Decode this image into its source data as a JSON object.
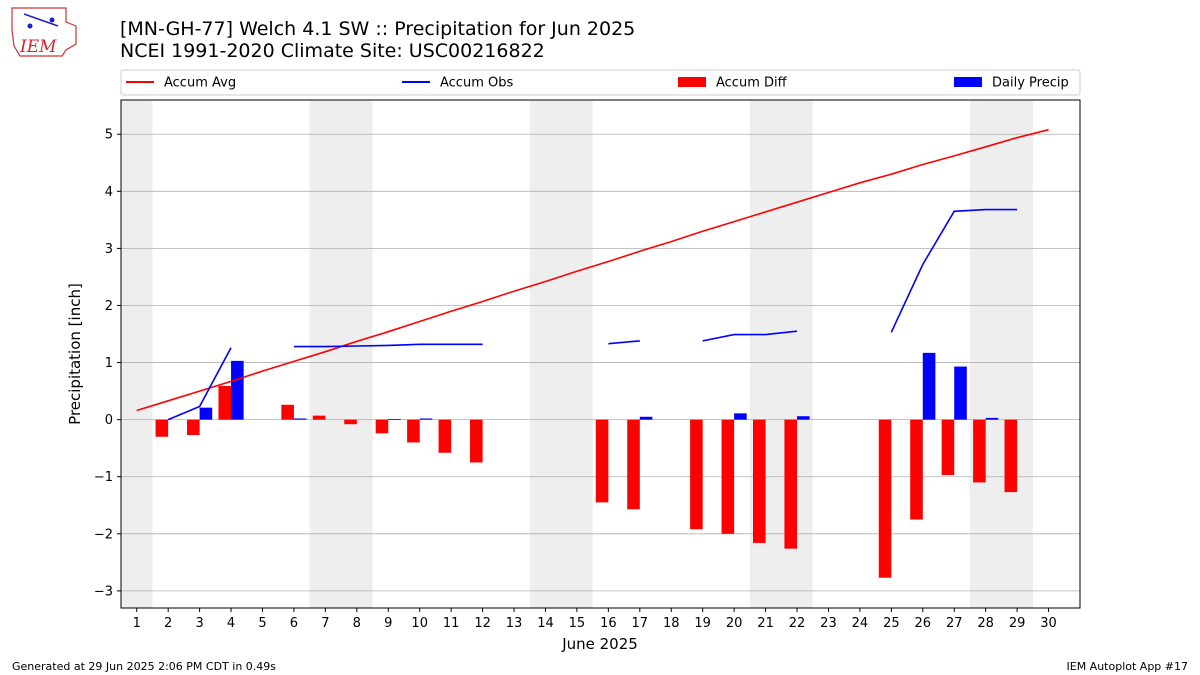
{
  "header": {
    "title_line1": "[MN-GH-77] Welch 4.1 SW :: Precipitation for Jun 2025",
    "title_line2": "NCEI 1991-2020 Climate Site: USC00216822"
  },
  "logo": {
    "text": "IEM",
    "primary_color": "#d62728",
    "secondary_color": "#1f1fcc"
  },
  "footer": {
    "generated": "Generated at 29 Jun 2025 2:06 PM CDT in 0.49s",
    "app": "IEM Autoplot App #17"
  },
  "chart_data": {
    "type": "bar",
    "xlabel": "June 2025",
    "ylabel": "Precipitation [inch]",
    "xlim": [
      0.5,
      31
    ],
    "ylim": [
      -3.3,
      5.6
    ],
    "x_ticks": [
      1,
      2,
      3,
      4,
      5,
      6,
      7,
      8,
      9,
      10,
      11,
      12,
      13,
      14,
      15,
      16,
      17,
      18,
      19,
      20,
      21,
      22,
      23,
      24,
      25,
      26,
      27,
      28,
      29,
      30
    ],
    "y_ticks": [
      -3,
      -2,
      -1,
      0,
      1,
      2,
      3,
      4,
      5
    ],
    "grid": true,
    "legend_placement": "top (above plot)",
    "weekend_shading": [
      [
        0.5,
        1.5
      ],
      [
        6.5,
        8.5
      ],
      [
        13.5,
        15.5
      ],
      [
        20.5,
        22.5
      ],
      [
        27.5,
        29.5
      ]
    ],
    "weekend_color": "#eeeeee",
    "legend": [
      {
        "label": "Accum Avg",
        "kind": "line",
        "color": "#ff0000"
      },
      {
        "label": "Accum Obs",
        "kind": "line",
        "color": "#0000ff"
      },
      {
        "label": "Accum Diff",
        "kind": "bar",
        "color": "#ff0000"
      },
      {
        "label": "Daily Precip",
        "kind": "bar",
        "color": "#0000ff"
      }
    ],
    "series": [
      {
        "name": "Accum Avg",
        "kind": "line",
        "color": "#ff0000",
        "x": [
          1,
          2,
          3,
          4,
          5,
          6,
          7,
          8,
          9,
          10,
          11,
          12,
          13,
          14,
          15,
          16,
          17,
          18,
          19,
          20,
          21,
          22,
          23,
          24,
          25,
          26,
          27,
          28,
          29,
          30
        ],
        "values": [
          0.16,
          0.33,
          0.5,
          0.67,
          0.85,
          1.02,
          1.19,
          1.37,
          1.54,
          1.72,
          1.9,
          2.07,
          2.25,
          2.42,
          2.6,
          2.77,
          2.95,
          3.12,
          3.3,
          3.47,
          3.64,
          3.81,
          3.98,
          4.15,
          4.3,
          4.47,
          4.62,
          4.78,
          4.94,
          5.08
        ]
      },
      {
        "name": "Accum Obs",
        "kind": "line",
        "color": "#0000ff",
        "segments": [
          {
            "x": [
              2,
              3,
              4
            ],
            "values": [
              0.0,
              0.23,
              1.26
            ]
          },
          {
            "x": [
              6,
              7,
              8,
              9,
              10,
              11,
              12
            ],
            "values": [
              1.28,
              1.28,
              1.29,
              1.3,
              1.32,
              1.32,
              1.32
            ]
          },
          {
            "x": [
              16,
              17
            ],
            "values": [
              1.33,
              1.38
            ]
          },
          {
            "x": [
              19,
              20,
              21,
              22
            ],
            "values": [
              1.38,
              1.49,
              1.49,
              1.55
            ]
          },
          {
            "x": [
              25,
              26,
              27,
              28,
              29
            ],
            "values": [
              1.53,
              2.72,
              3.65,
              3.68,
              3.68
            ]
          }
        ]
      },
      {
        "name": "Accum Diff",
        "kind": "bar",
        "color": "#ff0000",
        "x": [
          2,
          3,
          4,
          6,
          7,
          8,
          9,
          10,
          11,
          12,
          16,
          17,
          19,
          20,
          21,
          22,
          25,
          26,
          27,
          28,
          29
        ],
        "values": [
          -0.3,
          -0.27,
          0.59,
          0.26,
          0.07,
          -0.08,
          -0.24,
          -0.4,
          -0.58,
          -0.75,
          -1.45,
          -1.57,
          -1.92,
          -2.0,
          -2.16,
          -2.26,
          -2.77,
          -1.75,
          -0.97,
          -1.1,
          -1.27
        ]
      },
      {
        "name": "Daily Precip",
        "kind": "bar",
        "color": "#0000ff",
        "x": [
          3,
          4,
          6,
          9,
          10,
          17,
          20,
          22,
          26,
          27,
          28
        ],
        "values": [
          0.21,
          1.03,
          0.02,
          0.01,
          0.02,
          0.05,
          0.11,
          0.06,
          1.17,
          0.93,
          0.03
        ]
      }
    ]
  }
}
